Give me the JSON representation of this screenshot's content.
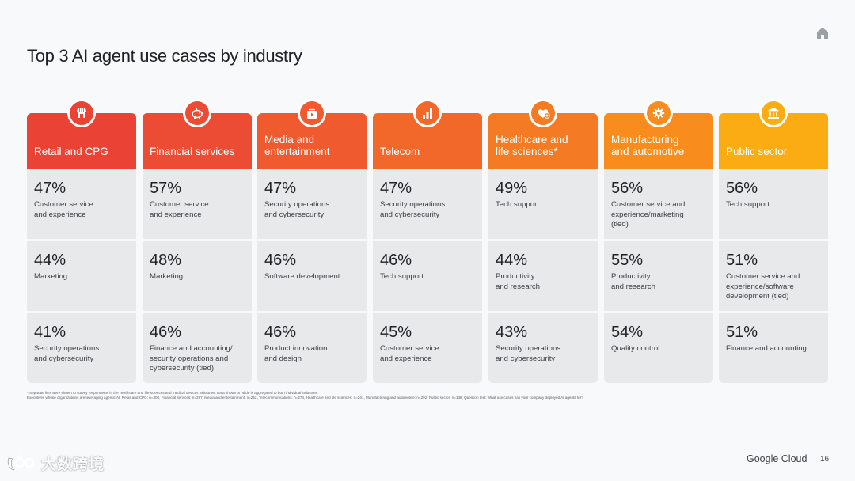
{
  "slide": {
    "title": "Top 3 AI agent use cases by industry",
    "page_number": "16",
    "brand": "Google Cloud"
  },
  "columns": [
    {
      "name": "Retail and CPG",
      "icon": "storefront-icon",
      "color": "#ea4335",
      "cells": [
        {
          "percent": "47%",
          "label": "Customer service\nand experience"
        },
        {
          "percent": "44%",
          "label": "Marketing"
        },
        {
          "percent": "41%",
          "label": "Security operations\nand cybersecurity"
        }
      ]
    },
    {
      "name": "Financial services",
      "icon": "piggy-bank-icon",
      "color": "#ec4c34",
      "cells": [
        {
          "percent": "57%",
          "label": "Customer service\nand experience"
        },
        {
          "percent": "48%",
          "label": "Marketing"
        },
        {
          "percent": "46%",
          "label": "Finance and accounting/\nsecurity operations and\ncybersecurity (tied)"
        }
      ]
    },
    {
      "name": "Media and\nentertainment",
      "icon": "media-icon",
      "color": "#ef5a2f",
      "cells": [
        {
          "percent": "47%",
          "label": "Security operations\nand cybersecurity"
        },
        {
          "percent": "46%",
          "label": "Software development"
        },
        {
          "percent": "46%",
          "label": "Product innovation\nand design"
        }
      ]
    },
    {
      "name": "Telecom",
      "icon": "signal-bars-icon",
      "color": "#f2682a",
      "cells": [
        {
          "percent": "47%",
          "label": "Security operations\nand cybersecurity"
        },
        {
          "percent": "46%",
          "label": "Tech support"
        },
        {
          "percent": "45%",
          "label": "Customer service\nand experience"
        }
      ]
    },
    {
      "name": "Healthcare and\nlife sciences*",
      "icon": "heart-plus-icon",
      "color": "#f57a24",
      "cells": [
        {
          "percent": "49%",
          "label": "Tech support"
        },
        {
          "percent": "44%",
          "label": "Productivity\nand research"
        },
        {
          "percent": "43%",
          "label": "Security operations\nand cybersecurity"
        }
      ]
    },
    {
      "name": "Manufacturing\nand automotive",
      "icon": "gear-icon",
      "color": "#f88d1d",
      "cells": [
        {
          "percent": "56%",
          "label": "Customer service and\nexperience/marketing\n(tied)"
        },
        {
          "percent": "55%",
          "label": "Productivity\nand research"
        },
        {
          "percent": "54%",
          "label": "Quality control"
        }
      ]
    },
    {
      "name": "Public sector",
      "icon": "government-building-icon",
      "color": "#fbac12",
      "cells": [
        {
          "percent": "56%",
          "label": "Tech support"
        },
        {
          "percent": "51%",
          "label": "Customer service and\nexperience/software\ndevelopment (tied)"
        },
        {
          "percent": "51%",
          "label": "Finance and accounting"
        }
      ]
    }
  ],
  "footnotes": [
    "* Separate lists were shown to survey respondents in the healthcare and life sciences and medical devices industries. Data shown on slide is aggregated to both individual industries.",
    "Executives whose organizations are leveraging agentic AI. Retail and CPG: n=300, Financial services: n=297, Media and entertainment: n=252, Telecommunications: n=274, Healthcare and life sciences: n=261, Manufacturing and automotive: n=292, Public sector: n=138; Question text: What use cases has your company deployed AI agents for?"
  ],
  "watermark": "大数跨境"
}
